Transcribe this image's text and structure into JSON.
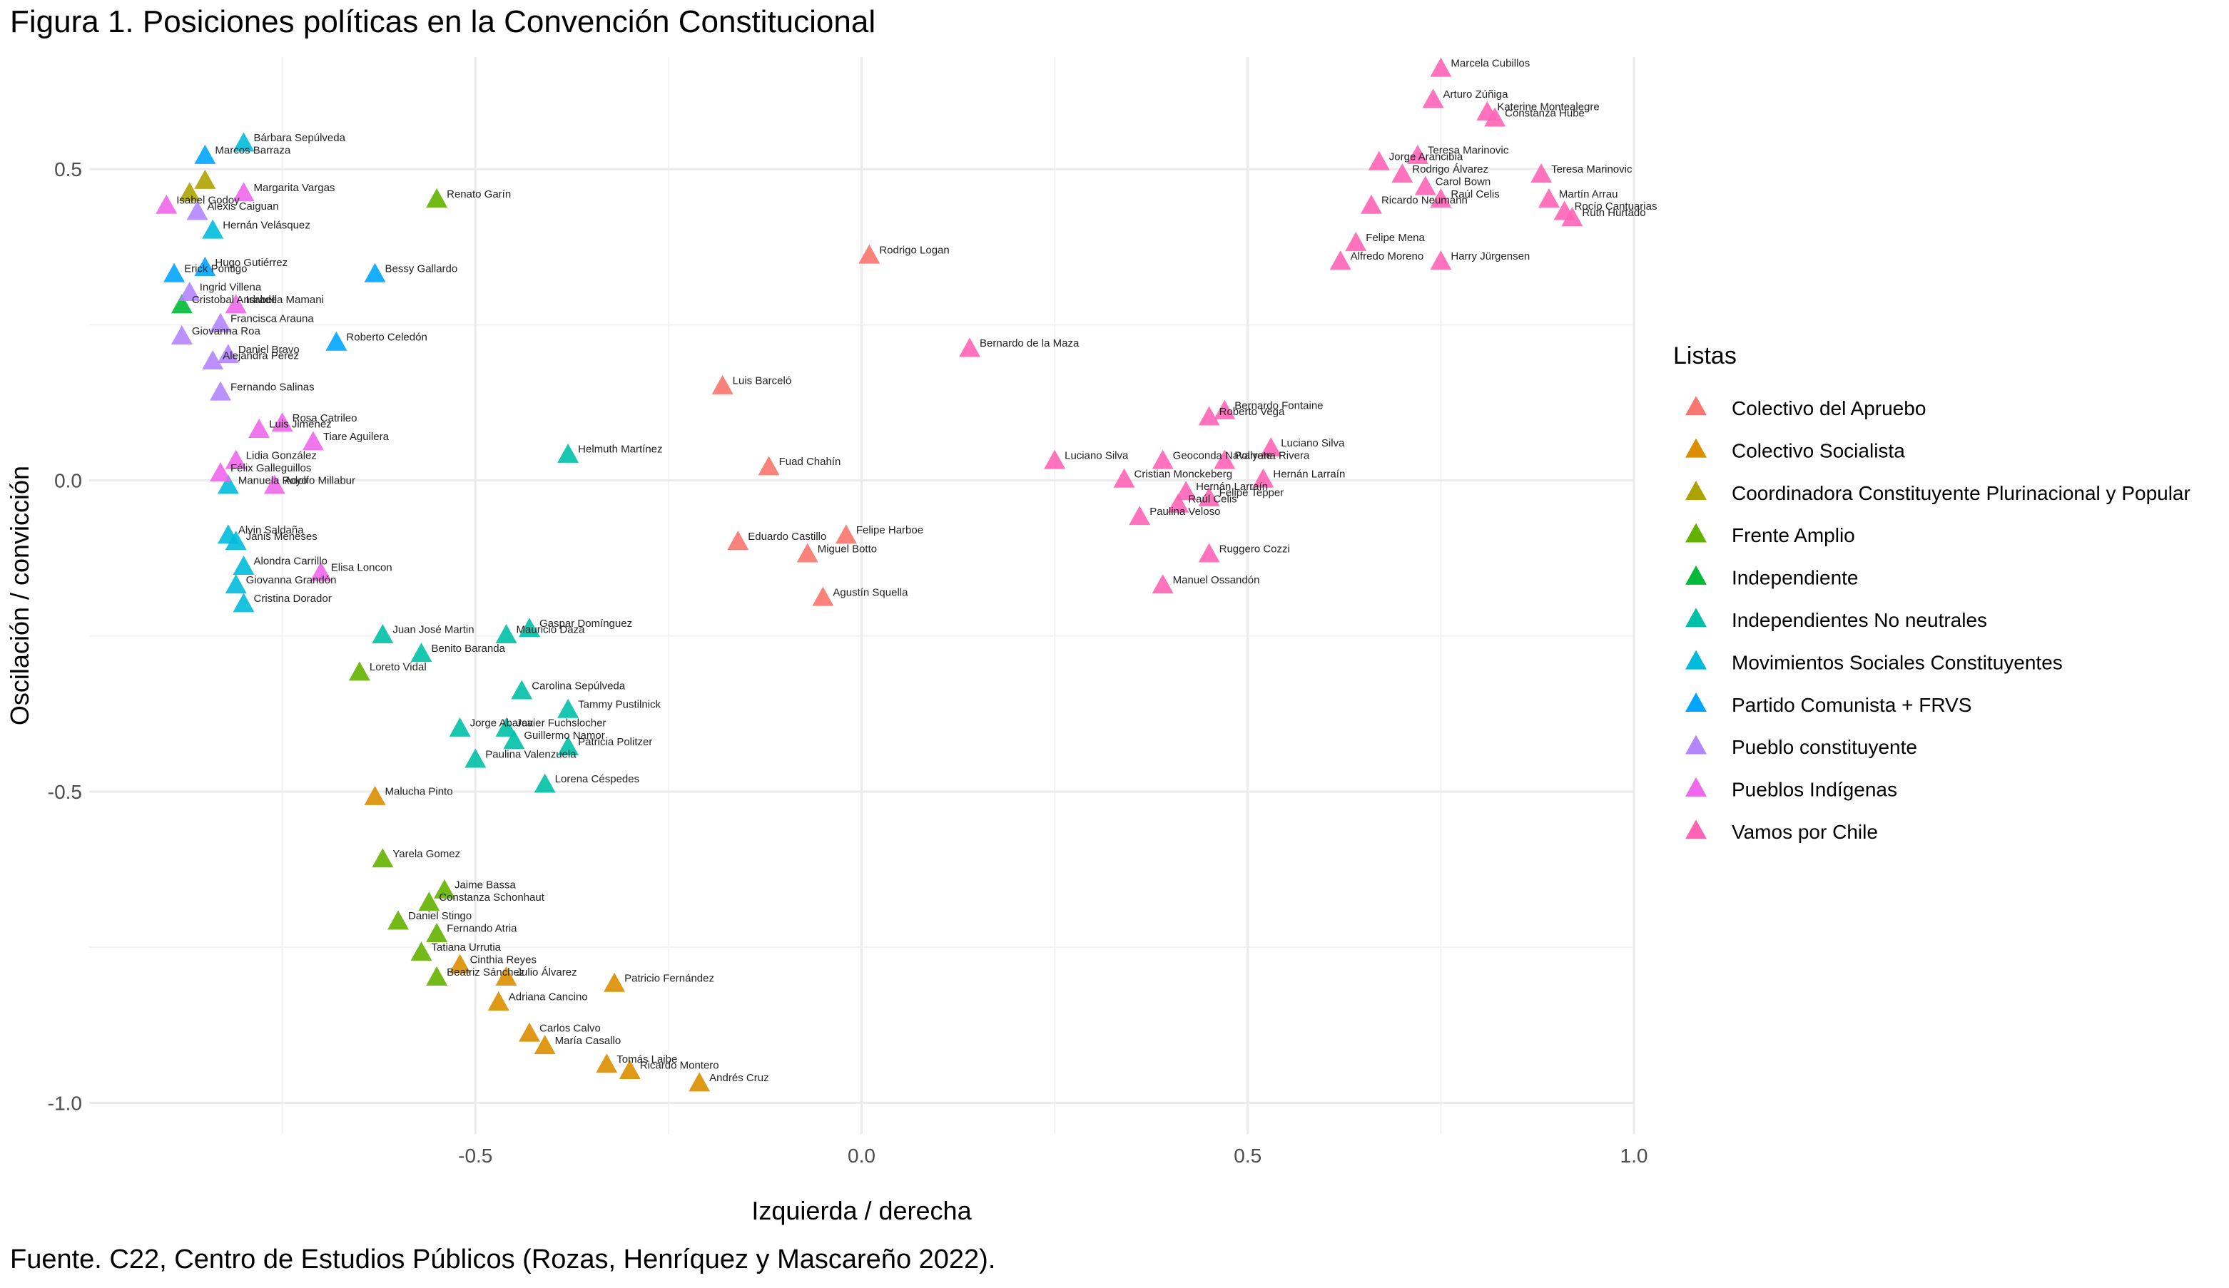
{
  "figure": {
    "title": "Figura 1. Posiciones políticas en la Convención Constitucional",
    "source": "Fuente. C22, Centro de Estudios Públicos (Rozas, Henríquez y Mascareño 2022)."
  },
  "chart_data": {
    "type": "scatter",
    "xlabel": "Izquierda / derecha",
    "ylabel": "Oscilación / convicción",
    "xlim": [
      -1.0,
      1.0
    ],
    "ylim": [
      -1.05,
      0.68
    ],
    "x_ticks": [
      -0.5,
      0.0,
      0.5,
      1.0
    ],
    "x_tick_labels": [
      "-0.5",
      "0.0",
      "0.5",
      "1.0"
    ],
    "y_ticks": [
      -1.0,
      -0.5,
      0.0,
      0.5
    ],
    "y_tick_labels": [
      "-1.0",
      "-0.5",
      "0.0",
      "0.5"
    ],
    "grid": true,
    "legend": {
      "title": "Listas",
      "position": "right"
    },
    "series": [
      {
        "name": "Colectivo del Apruebo",
        "color": "#F8766D",
        "points": [
          {
            "x": 0.01,
            "y": 0.36,
            "label": "Rodrigo Logan"
          },
          {
            "x": -0.18,
            "y": 0.15,
            "label": "Luis Barceló"
          },
          {
            "x": -0.12,
            "y": 0.02,
            "label": "Fuad Chahín"
          },
          {
            "x": -0.16,
            "y": -0.1,
            "label": "Eduardo Castillo"
          },
          {
            "x": -0.02,
            "y": -0.09,
            "label": "Felipe Harboe"
          },
          {
            "x": -0.07,
            "y": -0.12,
            "label": "Miguel Botto"
          },
          {
            "x": -0.05,
            "y": -0.19,
            "label": "Agustín Squella"
          }
        ]
      },
      {
        "name": "Colectivo Socialista",
        "color": "#DB8E00",
        "points": [
          {
            "x": -0.63,
            "y": -0.51,
            "label": "Malucha Pinto"
          },
          {
            "x": -0.32,
            "y": -0.81,
            "label": "Patricio Fernández"
          },
          {
            "x": -0.47,
            "y": -0.84,
            "label": "Adriana Cancino"
          },
          {
            "x": -0.43,
            "y": -0.89,
            "label": "Carlos Calvo"
          },
          {
            "x": -0.41,
            "y": -0.91,
            "label": "María Casallo"
          },
          {
            "x": -0.33,
            "y": -0.94,
            "label": "Tomás Laibe"
          },
          {
            "x": -0.3,
            "y": -0.95,
            "label": "Ricardo Montero"
          },
          {
            "x": -0.21,
            "y": -0.97,
            "label": "Andrés Cruz"
          },
          {
            "x": -0.52,
            "y": -0.78,
            "label": "Cinthia Reyes"
          },
          {
            "x": -0.46,
            "y": -0.8,
            "label": "Julio Álvarez"
          }
        ]
      },
      {
        "name": "Coordinadora Constituyente Plurinacional y Popular",
        "color": "#AEA200",
        "points": [
          {
            "x": -0.85,
            "y": 0.48,
            "label": ""
          },
          {
            "x": -0.87,
            "y": 0.46,
            "label": ""
          }
        ]
      },
      {
        "name": "Frente Amplio",
        "color": "#64B200",
        "points": [
          {
            "x": -0.55,
            "y": 0.45,
            "label": "Renato Garín"
          },
          {
            "x": -0.65,
            "y": -0.31,
            "label": "Loreto Vidal"
          },
          {
            "x": -0.62,
            "y": -0.61,
            "label": "Yarela Gomez"
          },
          {
            "x": -0.54,
            "y": -0.66,
            "label": "Jaime Bassa"
          },
          {
            "x": -0.56,
            "y": -0.68,
            "label": "Constanza Schonhaut"
          },
          {
            "x": -0.6,
            "y": -0.71,
            "label": "Daniel Stingo"
          },
          {
            "x": -0.55,
            "y": -0.73,
            "label": "Fernando Atria"
          },
          {
            "x": -0.57,
            "y": -0.76,
            "label": "Tatiana Urrutia"
          },
          {
            "x": -0.55,
            "y": -0.8,
            "label": "Beatriz Sánchez"
          }
        ]
      },
      {
        "name": "Independiente",
        "color": "#00BA38",
        "points": [
          {
            "x": -0.88,
            "y": 0.28,
            "label": "Cristobal Andrade"
          }
        ]
      },
      {
        "name": "Independientes No neutrales",
        "color": "#00C1A7",
        "points": [
          {
            "x": -0.38,
            "y": 0.04,
            "label": "Helmuth Martínez"
          },
          {
            "x": -0.62,
            "y": -0.25,
            "label": "Juan José Martin"
          },
          {
            "x": -0.57,
            "y": -0.28,
            "label": "Benito Baranda"
          },
          {
            "x": -0.43,
            "y": -0.24,
            "label": "Gaspar Domínguez"
          },
          {
            "x": -0.46,
            "y": -0.25,
            "label": "Mauricio Daza"
          },
          {
            "x": -0.44,
            "y": -0.34,
            "label": "Carolina Sepúlveda"
          },
          {
            "x": -0.38,
            "y": -0.37,
            "label": "Tammy Pustilnick"
          },
          {
            "x": -0.52,
            "y": -0.4,
            "label": "Jorge Abarca"
          },
          {
            "x": -0.46,
            "y": -0.4,
            "label": "Javier Fuchslocher"
          },
          {
            "x": -0.45,
            "y": -0.42,
            "label": "Guillermo Namor"
          },
          {
            "x": -0.38,
            "y": -0.43,
            "label": "Patricia Politzer"
          },
          {
            "x": -0.5,
            "y": -0.45,
            "label": "Paulina Valenzuela"
          },
          {
            "x": -0.41,
            "y": -0.49,
            "label": "Lorena Céspedes"
          }
        ]
      },
      {
        "name": "Movimientos Sociales Constituyentes",
        "color": "#00BBDB",
        "points": [
          {
            "x": -0.8,
            "y": 0.54,
            "label": "Bárbara Sepúlveda"
          },
          {
            "x": -0.84,
            "y": 0.4,
            "label": "Hernán Velásquez"
          },
          {
            "x": -0.82,
            "y": -0.01,
            "label": "Manuela Royo"
          },
          {
            "x": -0.82,
            "y": -0.09,
            "label": "Alvin Saldaña"
          },
          {
            "x": -0.81,
            "y": -0.1,
            "label": "Janis Meneses"
          },
          {
            "x": -0.8,
            "y": -0.14,
            "label": "Alondra Carrillo"
          },
          {
            "x": -0.81,
            "y": -0.17,
            "label": "Giovanna Grandón"
          },
          {
            "x": -0.8,
            "y": -0.2,
            "label": "Cristina Dorador"
          }
        ]
      },
      {
        "name": "Partido Comunista + FRVS",
        "color": "#00A5FF",
        "points": [
          {
            "x": -0.89,
            "y": 0.33,
            "label": "Erick Pontigo"
          },
          {
            "x": -0.85,
            "y": 0.34,
            "label": "Hugo Gutiérrez"
          },
          {
            "x": -0.63,
            "y": 0.33,
            "label": "Bessy Gallardo"
          },
          {
            "x": -0.68,
            "y": 0.22,
            "label": "Roberto Celedón"
          },
          {
            "x": -0.85,
            "y": 0.52,
            "label": "Marcos Barraza"
          }
        ]
      },
      {
        "name": "Pueblo constituyente",
        "color": "#B385FF",
        "points": [
          {
            "x": -0.87,
            "y": 0.3,
            "label": "Ingrid Villena"
          },
          {
            "x": -0.83,
            "y": 0.25,
            "label": "Francisca Arauna"
          },
          {
            "x": -0.88,
            "y": 0.23,
            "label": "Giovanna Roa"
          },
          {
            "x": -0.82,
            "y": 0.2,
            "label": "Daniel Bravo"
          },
          {
            "x": -0.84,
            "y": 0.19,
            "label": "Alejandra Pérez"
          },
          {
            "x": -0.83,
            "y": 0.14,
            "label": "Fernando Salinas"
          },
          {
            "x": -0.86,
            "y": 0.43,
            "label": "Alexis Caiguan"
          }
        ]
      },
      {
        "name": "Pueblos Indígenas",
        "color": "#EF67EB",
        "points": [
          {
            "x": -0.9,
            "y": 0.44,
            "label": "Isabel Godoy"
          },
          {
            "x": -0.81,
            "y": 0.28,
            "label": "Isabella Mamani"
          },
          {
            "x": -0.78,
            "y": 0.08,
            "label": "Luis Jiménez"
          },
          {
            "x": -0.75,
            "y": 0.09,
            "label": "Rosa Catrileo"
          },
          {
            "x": -0.71,
            "y": 0.06,
            "label": "Tiare Aguilera"
          },
          {
            "x": -0.81,
            "y": 0.03,
            "label": "Lidia González"
          },
          {
            "x": -0.83,
            "y": 0.01,
            "label": "Félix Galleguillos"
          },
          {
            "x": -0.76,
            "y": -0.01,
            "label": "Adolfo Millabur"
          },
          {
            "x": -0.7,
            "y": -0.15,
            "label": "Elisa Loncon"
          },
          {
            "x": -0.8,
            "y": 0.46,
            "label": "Margarita Vargas"
          }
        ]
      },
      {
        "name": "Vamos por Chile",
        "color": "#FF63B6",
        "points": [
          {
            "x": 0.75,
            "y": 0.66,
            "label": "Marcela Cubillos"
          },
          {
            "x": 0.74,
            "y": 0.61,
            "label": "Arturo Zúñiga"
          },
          {
            "x": 0.81,
            "y": 0.59,
            "label": "Katerine Montealegre"
          },
          {
            "x": 0.82,
            "y": 0.58,
            "label": "Constanza Hube"
          },
          {
            "x": 0.67,
            "y": 0.51,
            "label": "Jorge Arancibia"
          },
          {
            "x": 0.7,
            "y": 0.49,
            "label": "Rodrigo Álvarez"
          },
          {
            "x": 0.72,
            "y": 0.52,
            "label": "Teresa Marinovic"
          },
          {
            "x": 0.88,
            "y": 0.49,
            "label": "Teresa Marinovic"
          },
          {
            "x": 0.73,
            "y": 0.47,
            "label": "Carol Bown"
          },
          {
            "x": 0.75,
            "y": 0.45,
            "label": "Raúl Celis"
          },
          {
            "x": 0.66,
            "y": 0.44,
            "label": "Ricardo Neumann"
          },
          {
            "x": 0.89,
            "y": 0.45,
            "label": "Martín Arrau"
          },
          {
            "x": 0.91,
            "y": 0.43,
            "label": "Rocío Cantuarias"
          },
          {
            "x": 0.92,
            "y": 0.42,
            "label": "Ruth Hurtado"
          },
          {
            "x": 0.64,
            "y": 0.38,
            "label": "Felipe Mena"
          },
          {
            "x": 0.62,
            "y": 0.35,
            "label": "Alfredo Moreno"
          },
          {
            "x": 0.75,
            "y": 0.35,
            "label": "Harry Jürgensen"
          },
          {
            "x": 0.47,
            "y": 0.11,
            "label": "Bernardo Fontaine"
          },
          {
            "x": 0.45,
            "y": 0.1,
            "label": "Roberto Vega"
          },
          {
            "x": 0.53,
            "y": 0.05,
            "label": "Luciano Silva"
          },
          {
            "x": 0.25,
            "y": 0.03,
            "label": "Luciano Silva"
          },
          {
            "x": 0.39,
            "y": 0.03,
            "label": "Geoconda Navarrete"
          },
          {
            "x": 0.47,
            "y": 0.03,
            "label": "Pollyana Rivera"
          },
          {
            "x": 0.34,
            "y": 0.0,
            "label": "Cristian Monckeberg"
          },
          {
            "x": 0.52,
            "y": 0.0,
            "label": "Hernán Larraín"
          },
          {
            "x": 0.45,
            "y": -0.03,
            "label": "Felipe Tepper"
          },
          {
            "x": 0.42,
            "y": -0.02,
            "label": "Hernán Larraín"
          },
          {
            "x": 0.41,
            "y": -0.04,
            "label": "Raúl Celis"
          },
          {
            "x": 0.36,
            "y": -0.06,
            "label": "Paulina Veloso"
          },
          {
            "x": 0.45,
            "y": -0.12,
            "label": "Ruggero Cozzi"
          },
          {
            "x": 0.39,
            "y": -0.17,
            "label": "Manuel Ossandón"
          },
          {
            "x": 0.14,
            "y": 0.21,
            "label": "Bernardo de la Maza"
          }
        ]
      }
    ]
  }
}
